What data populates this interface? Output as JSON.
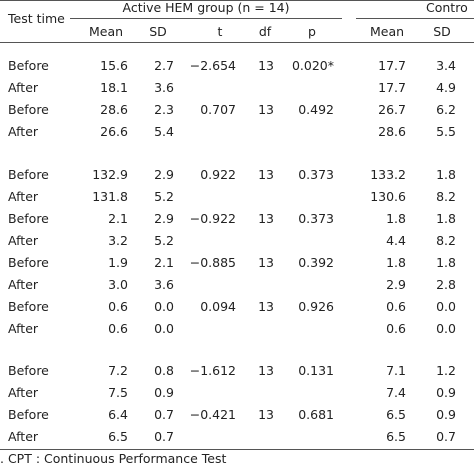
{
  "header": {
    "test_time": "Test time",
    "active_group": "Active HEM group (n = 14)",
    "control_group": "Contro",
    "columns": [
      "Mean",
      "SD",
      "t",
      "df",
      "p",
      "Mean",
      "SD"
    ]
  },
  "rows": [
    {
      "label": "Before",
      "a_mean": "15.6",
      "a_sd": "2.7",
      "t": "−2.654",
      "df": "13",
      "p": "0.020*",
      "c_mean": "17.7",
      "c_sd": "3.4"
    },
    {
      "label": "After",
      "a_mean": "18.1",
      "a_sd": "3.6",
      "t": "",
      "df": "",
      "p": "",
      "c_mean": "17.7",
      "c_sd": "4.9"
    },
    {
      "label": "Before",
      "a_mean": "28.6",
      "a_sd": "2.3",
      "t": "0.707",
      "df": "13",
      "p": "0.492",
      "c_mean": "26.7",
      "c_sd": "6.2"
    },
    {
      "label": "After",
      "a_mean": "26.6",
      "a_sd": "5.4",
      "t": "",
      "df": "",
      "p": "",
      "c_mean": "28.6",
      "c_sd": "5.5"
    },
    {
      "label": "Before",
      "a_mean": "132.9",
      "a_sd": "2.9",
      "t": "0.922",
      "df": "13",
      "p": "0.373",
      "c_mean": "133.2",
      "c_sd": "1.8"
    },
    {
      "label": "After",
      "a_mean": "131.8",
      "a_sd": "5.2",
      "t": "",
      "df": "",
      "p": "",
      "c_mean": "130.6",
      "c_sd": "8.2"
    },
    {
      "label": "Before",
      "a_mean": "2.1",
      "a_sd": "2.9",
      "t": "−0.922",
      "df": "13",
      "p": "0.373",
      "c_mean": "1.8",
      "c_sd": "1.8"
    },
    {
      "label": "After",
      "a_mean": "3.2",
      "a_sd": "5.2",
      "t": "",
      "df": "",
      "p": "",
      "c_mean": "4.4",
      "c_sd": "8.2"
    },
    {
      "label": "Before",
      "a_mean": "1.9",
      "a_sd": "2.1",
      "t": "−0.885",
      "df": "13",
      "p": "0.392",
      "c_mean": "1.8",
      "c_sd": "1.8"
    },
    {
      "label": "After",
      "a_mean": "3.0",
      "a_sd": "3.6",
      "t": "",
      "df": "",
      "p": "",
      "c_mean": "2.9",
      "c_sd": "2.8"
    },
    {
      "label": "Before",
      "a_mean": "0.6",
      "a_sd": "0.0",
      "t": "0.094",
      "df": "13",
      "p": "0.926",
      "c_mean": "0.6",
      "c_sd": "0.0"
    },
    {
      "label": "After",
      "a_mean": "0.6",
      "a_sd": "0.0",
      "t": "",
      "df": "",
      "p": "",
      "c_mean": "0.6",
      "c_sd": "0.0"
    },
    {
      "label": "Before",
      "a_mean": "7.2",
      "a_sd": "0.8",
      "t": "−1.612",
      "df": "13",
      "p": "0.131",
      "c_mean": "7.1",
      "c_sd": "1.2"
    },
    {
      "label": "After",
      "a_mean": "7.5",
      "a_sd": "0.9",
      "t": "",
      "df": "",
      "p": "",
      "c_mean": "7.4",
      "c_sd": "0.9"
    },
    {
      "label": "Before",
      "a_mean": "6.4",
      "a_sd": "0.7",
      "t": "−0.421",
      "df": "13",
      "p": "0.681",
      "c_mean": "6.5",
      "c_sd": "0.9"
    },
    {
      "label": "After",
      "a_mean": "6.5",
      "a_sd": "0.7",
      "t": "",
      "df": "",
      "p": "",
      "c_mean": "6.5",
      "c_sd": "0.7"
    }
  ],
  "footnote": ". CPT : Continuous Performance Test"
}
